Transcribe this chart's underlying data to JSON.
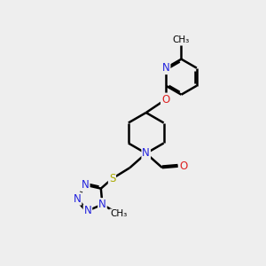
{
  "bg_color": "#eeeeee",
  "atom_colors": {
    "C": "#000000",
    "N": "#2222dd",
    "O": "#dd2222",
    "S": "#aaaa00",
    "H": "#000000"
  },
  "bond_color": "#000000",
  "bond_width": 1.8,
  "font_size_atom": 8.5,
  "font_size_methyl": 7.5,
  "xlim": [
    0,
    10
  ],
  "ylim": [
    0,
    10
  ]
}
